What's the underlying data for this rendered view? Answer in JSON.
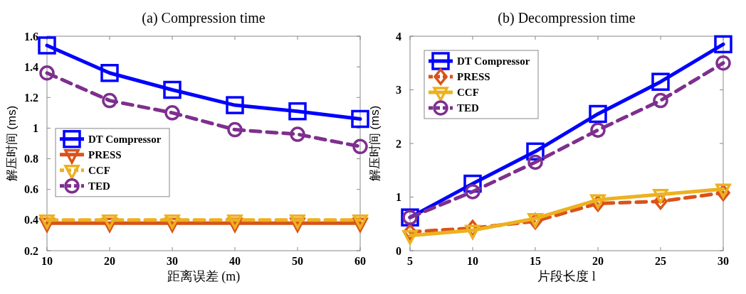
{
  "chart_data": [
    {
      "type": "line",
      "title": "(a) Compression time",
      "xlabel": "距离误差 (m)",
      "ylabel": "解压时间 (ms)",
      "x": [
        10,
        20,
        30,
        40,
        50,
        60
      ],
      "xlim": [
        10,
        60
      ],
      "xticks": [
        10,
        20,
        30,
        40,
        50,
        60
      ],
      "ylim": [
        0.2,
        1.6
      ],
      "yticks": [
        0.2,
        0.4,
        0.6,
        0.8,
        1,
        1.2,
        1.4,
        1.6
      ],
      "grid": false,
      "legend": "left",
      "series": [
        {
          "name": "DT Compressor",
          "color": "#0000ff",
          "marker": "square",
          "line_style": "solid",
          "values": [
            1.54,
            1.36,
            1.25,
            1.15,
            1.11,
            1.06
          ]
        },
        {
          "name": "PRESS",
          "color": "#d95319",
          "marker": "triangle",
          "line_style": "solid",
          "values": [
            0.38,
            0.38,
            0.38,
            0.38,
            0.38,
            0.38
          ]
        },
        {
          "name": "CCF",
          "color": "#edb120",
          "marker": "triangle",
          "line_style": "dashed",
          "values": [
            0.4,
            0.4,
            0.4,
            0.4,
            0.4,
            0.4
          ]
        },
        {
          "name": "TED",
          "color": "#7e2f8e",
          "marker": "circle",
          "line_style": "dashed",
          "values": [
            1.36,
            1.18,
            1.1,
            0.99,
            0.96,
            0.88
          ]
        }
      ]
    },
    {
      "type": "line",
      "title": "(b) Decompression time",
      "xlabel": "片段长度 l",
      "ylabel": "解压时间 (ms)",
      "x": [
        5,
        10,
        15,
        20,
        25,
        30
      ],
      "xlim": [
        5,
        30
      ],
      "xticks": [
        5,
        10,
        15,
        20,
        25,
        30
      ],
      "ylim": [
        0,
        4
      ],
      "yticks": [
        0,
        1,
        2,
        3,
        4
      ],
      "grid": false,
      "legend": "top left",
      "series": [
        {
          "name": "DT Compressor",
          "color": "#0000ff",
          "marker": "square",
          "line_style": "solid",
          "values": [
            0.62,
            1.25,
            1.85,
            2.55,
            3.15,
            3.85
          ]
        },
        {
          "name": "PRESS",
          "color": "#d95319",
          "marker": "diamond",
          "line_style": "dashed",
          "values": [
            0.35,
            0.42,
            0.55,
            0.88,
            0.92,
            1.08
          ]
        },
        {
          "name": "CCF",
          "color": "#edb120",
          "marker": "triangle",
          "line_style": "solid",
          "values": [
            0.28,
            0.38,
            0.6,
            0.95,
            1.05,
            1.15
          ]
        },
        {
          "name": "TED",
          "color": "#7e2f8e",
          "marker": "circle",
          "line_style": "dashed",
          "values": [
            0.62,
            1.1,
            1.65,
            2.25,
            2.8,
            3.5
          ]
        }
      ]
    }
  ]
}
